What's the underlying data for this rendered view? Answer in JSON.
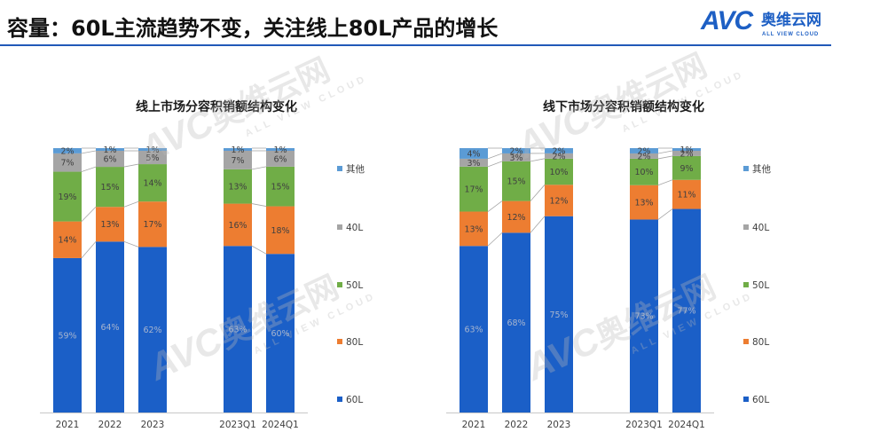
{
  "slide": {
    "title": "容量：60L主流趋势不变，关注线上80L产品的增长",
    "accent_color": "#2159b8"
  },
  "logo": {
    "mark": "AVC",
    "name": "奥维云网",
    "tagline": "ALL VIEW CLOUD",
    "color": "#1d5fc4"
  },
  "chart_data": [
    {
      "type": "bar",
      "stacking": "percent",
      "title": "线上市场分容积销额结构变化",
      "categories": [
        "2021",
        "2022",
        "2023",
        "2023Q1",
        "2024Q1"
      ],
      "value_suffix": "%",
      "ylim": [
        0,
        100
      ],
      "legend": "right",
      "grid": false,
      "series": [
        {
          "name": "60L",
          "color": "#1b5fc7",
          "values": [
            59,
            64,
            62,
            63,
            60
          ]
        },
        {
          "name": "80L",
          "color": "#ed7d31",
          "values": [
            14,
            13,
            17,
            16,
            18
          ]
        },
        {
          "name": "50L",
          "color": "#70ad47",
          "values": [
            19,
            15,
            14,
            13,
            15
          ]
        },
        {
          "name": "40L",
          "color": "#a5a5a5",
          "values": [
            7,
            6,
            5,
            7,
            6
          ]
        },
        {
          "name": "其他",
          "color": "#5b9bd5",
          "values": [
            2,
            1,
            1,
            1,
            1
          ]
        }
      ]
    },
    {
      "type": "bar",
      "stacking": "percent",
      "title": "线下市场分容积销额结构变化",
      "categories": [
        "2021",
        "2022",
        "2023",
        "2023Q1",
        "2024Q1"
      ],
      "value_suffix": "%",
      "ylim": [
        0,
        100
      ],
      "legend": "right",
      "grid": false,
      "series": [
        {
          "name": "60L",
          "color": "#1b5fc7",
          "values": [
            63,
            68,
            75,
            73,
            77
          ]
        },
        {
          "name": "80L",
          "color": "#ed7d31",
          "values": [
            13,
            12,
            12,
            13,
            11
          ]
        },
        {
          "name": "50L",
          "color": "#70ad47",
          "values": [
            17,
            15,
            10,
            10,
            9
          ]
        },
        {
          "name": "40L",
          "color": "#a5a5a5",
          "values": [
            3,
            3,
            2,
            2,
            2
          ]
        },
        {
          "name": "其他",
          "color": "#5b9bd5",
          "values": [
            4,
            2,
            2,
            2,
            1
          ]
        }
      ]
    }
  ]
}
